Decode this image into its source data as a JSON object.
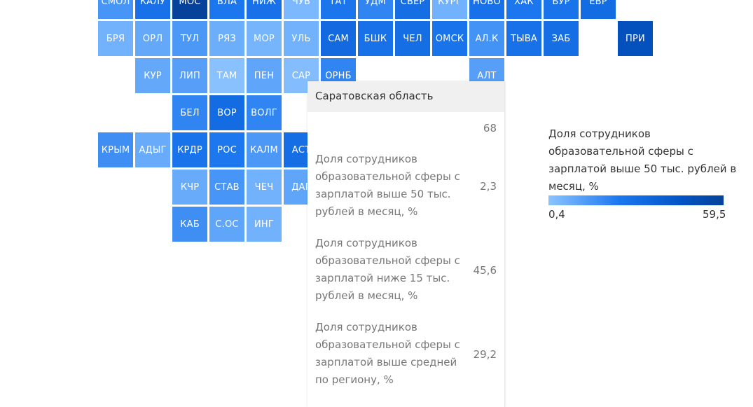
{
  "colors": {
    "scale_min": "#8cc3ff",
    "scale_max": "#07429a",
    "tooltip_header_bg": "#f0f0f0"
  },
  "regions": [
    {
      "code": "СМОЛ",
      "value": 15
    },
    {
      "code": "КАЛУ",
      "value": 28
    },
    {
      "code": "МОС",
      "value": 59.5
    },
    {
      "code": "ВЛА",
      "value": 25
    },
    {
      "code": "НИЖ",
      "value": 28
    },
    {
      "code": "ЧУВ",
      "value": 4
    },
    {
      "code": "ТАТ",
      "value": 26
    },
    {
      "code": "УДМ",
      "value": 20
    },
    {
      "code": "СВЕР",
      "value": 30
    },
    {
      "code": "КУРГ",
      "value": 6
    },
    {
      "code": "НОВО",
      "value": 28
    },
    {
      "code": "ХАК",
      "value": 25
    },
    {
      "code": "БУР",
      "value": 27
    },
    {
      "code": "ЕВР",
      "value": 31
    },
    {
      "code": "БРЯ",
      "value": 6
    },
    {
      "code": "ОРЛ",
      "value": 9
    },
    {
      "code": "ТУЛ",
      "value": 14
    },
    {
      "code": "РЯЗ",
      "value": 7
    },
    {
      "code": "МОР",
      "value": 5
    },
    {
      "code": "УЛЬ",
      "value": 6
    },
    {
      "code": "САМ",
      "value": 32
    },
    {
      "code": "БШК",
      "value": 28
    },
    {
      "code": "ЧЕЛ",
      "value": 30
    },
    {
      "code": "ОМСК",
      "value": 27
    },
    {
      "code": "АЛ.К",
      "value": 16
    },
    {
      "code": "ТЫВА",
      "value": 28
    },
    {
      "code": "ЗАБ",
      "value": 30
    },
    {
      "code": "ПРИ",
      "value": 48
    },
    {
      "code": "КУР",
      "value": 9
    },
    {
      "code": "ЛИП",
      "value": 12
    },
    {
      "code": "ТАМ",
      "value": 1
    },
    {
      "code": "ПЕН",
      "value": 10
    },
    {
      "code": "САР",
      "value": 2.3
    },
    {
      "code": "ОРНБ",
      "value": 20
    },
    {
      "code": "АЛТ",
      "value": 12
    },
    {
      "code": "БЕЛ",
      "value": 20
    },
    {
      "code": "ВОР",
      "value": 31
    },
    {
      "code": "ВОЛГ",
      "value": 20
    },
    {
      "code": "КРЫМ",
      "value": 17
    },
    {
      "code": "АДЫГ",
      "value": 8
    },
    {
      "code": "КРДР",
      "value": 27
    },
    {
      "code": "РОС",
      "value": 24
    },
    {
      "code": "КАЛМ",
      "value": 14
    },
    {
      "code": "АСТ",
      "value": 30
    },
    {
      "code": "КЧР",
      "value": 8
    },
    {
      "code": "СТАВ",
      "value": 15
    },
    {
      "code": "ЧЕЧ",
      "value": 6
    },
    {
      "code": "ДАГ",
      "value": 10
    },
    {
      "code": "КАБ",
      "value": 17
    },
    {
      "code": "С.ОС",
      "value": 10
    },
    {
      "code": "ИНГ",
      "value": 6
    }
  ],
  "tooltip": {
    "title": "Саратовская область",
    "rows": [
      {
        "label": "",
        "value": "68"
      },
      {
        "label": "Доля сотрудников образовательной сферы с зарплатой выше 50 тыс. рублей в месяц, %",
        "value": "2,3"
      },
      {
        "label": "Доля сотрудников образовательной сферы с зарплатой ниже 15 тыс. рублей в месяц, %",
        "value": "45,6"
      },
      {
        "label": "Доля сотрудников образовательной сферы с зарплатой выше средней по региону, %",
        "value": "29,2"
      }
    ]
  },
  "legend": {
    "title": "Доля сотрудников образовательной сферы с зарплатой выше 50 тыс. рублей в месяц, %",
    "min_label": "0,4",
    "max_label": "59,5",
    "min": 0.4,
    "max": 59.5
  }
}
